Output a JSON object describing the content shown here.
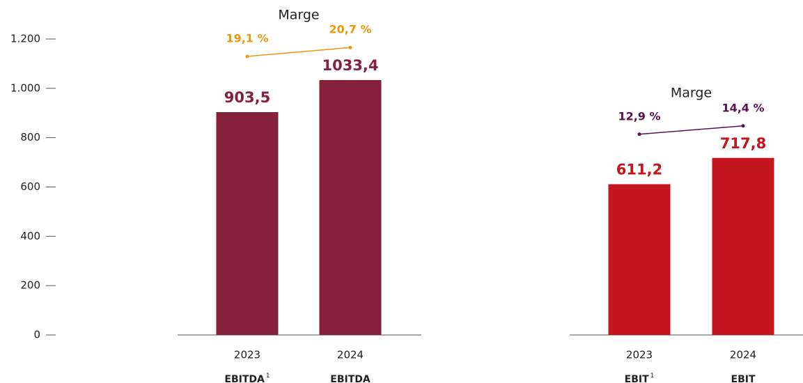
{
  "chart_data": {
    "type": "bar",
    "ylim": [
      0,
      1200
    ],
    "yticks": [
      0,
      200,
      400,
      600,
      800,
      {
        "value": 1000,
        "label": "1.000"
      },
      {
        "value": 1200,
        "label": "1.200"
      }
    ],
    "groups": [
      {
        "margin_title": "Marge",
        "color": "#85213d",
        "margin_color": "#f0960a",
        "categories": [
          "2023",
          "2024"
        ],
        "labels": [
          "EBITDA",
          "EBITDA"
        ],
        "notes": [
          "1",
          null
        ],
        "values": [
          903.5,
          1033.4
        ],
        "value_labels": [
          "903,5",
          "1033,4"
        ],
        "margins": [
          19.1,
          20.7
        ],
        "margin_labels": [
          "19,1 %",
          "20,7 %"
        ]
      },
      {
        "margin_title": "Marge",
        "color": "#c4161c",
        "margin_color": "#5c0f4f",
        "categories": [
          "2023",
          "2024"
        ],
        "labels": [
          "EBIT",
          "EBIT"
        ],
        "notes": [
          "1",
          null
        ],
        "values": [
          611.2,
          717.8
        ],
        "value_labels": [
          "611,2",
          "717,8"
        ],
        "margins": [
          12.9,
          14.4
        ],
        "margin_labels": [
          "12,9 %",
          "14,4 %"
        ]
      }
    ]
  }
}
